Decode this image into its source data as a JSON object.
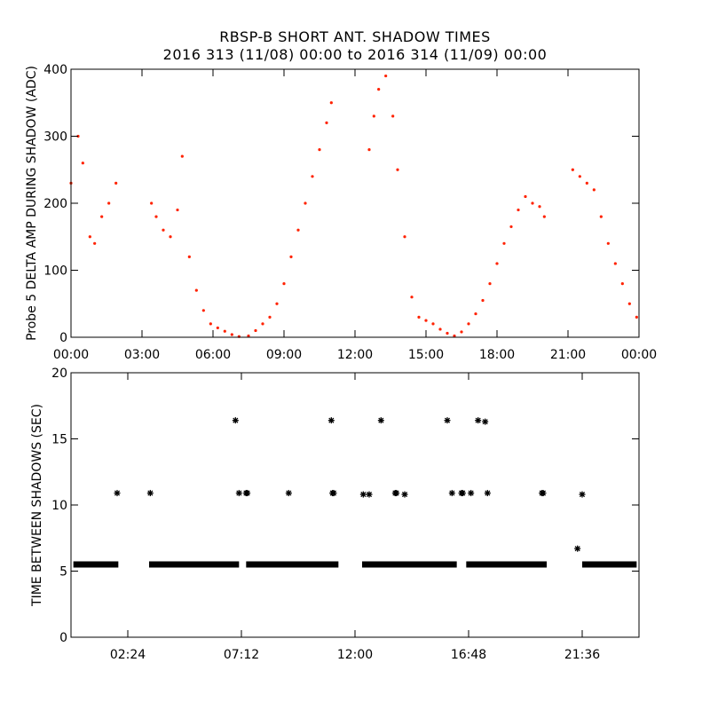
{
  "title": "RBSP-B SHORT ANT. SHADOW TIMES",
  "subtitle": "2016 313 (11/08) 00:00 to 2016 314 (11/09) 00:00",
  "colors": {
    "points": "#ff2200",
    "stars": "#000000",
    "axes": "#000000"
  },
  "chart_data": [
    {
      "type": "scatter",
      "ylabel": "Probe 5 DELTA AMP DURING SHADOW (ADC)",
      "xlabel": "",
      "xlim": [
        0,
        24
      ],
      "ylim": [
        0,
        400
      ],
      "xticks": [
        0,
        3,
        6,
        9,
        12,
        15,
        18,
        21,
        24
      ],
      "xtick_labels": [
        "00:00",
        "03:00",
        "06:00",
        "09:00",
        "12:00",
        "15:00",
        "18:00",
        "21:00",
        "00:00"
      ],
      "yticks": [
        0,
        100,
        200,
        300,
        400
      ],
      "ytick_labels": [
        "0",
        "100",
        "200",
        "300",
        "400"
      ],
      "grid": false,
      "marker": "dot",
      "series": [
        {
          "x": [
            0.0,
            0.3,
            0.5,
            0.8,
            1.0,
            1.3,
            1.6,
            1.9,
            3.4,
            3.6,
            3.9,
            4.2,
            4.5,
            4.7,
            5.0,
            5.3,
            5.6,
            5.9,
            6.2,
            6.5,
            6.8,
            7.1,
            7.5,
            7.8,
            8.1,
            8.4,
            8.7,
            9.0,
            9.3,
            9.6,
            9.9,
            10.2,
            10.5,
            10.8,
            11.0,
            12.6,
            12.8,
            13.0,
            13.3,
            13.6,
            13.8,
            14.1,
            14.4,
            14.7,
            15.0,
            15.3,
            15.6,
            15.9,
            16.2,
            16.5,
            16.8,
            17.1,
            17.4,
            17.7,
            18.0,
            18.3,
            18.6,
            18.9,
            19.2,
            19.5,
            19.8,
            20.0,
            21.2,
            21.5,
            21.8,
            22.1,
            22.4,
            22.7,
            23.0,
            23.3,
            23.6,
            23.9
          ],
          "y": [
            230,
            300,
            260,
            150,
            140,
            180,
            200,
            230,
            200,
            180,
            160,
            150,
            190,
            270,
            120,
            70,
            40,
            20,
            14,
            9,
            4,
            1,
            2,
            10,
            20,
            30,
            50,
            80,
            120,
            160,
            200,
            240,
            280,
            320,
            350,
            280,
            330,
            370,
            390,
            330,
            250,
            150,
            60,
            30,
            25,
            20,
            12,
            6,
            2,
            8,
            20,
            35,
            55,
            80,
            110,
            140,
            165,
            190,
            210,
            200,
            195,
            180,
            250,
            240,
            230,
            220,
            180,
            140,
            110,
            80,
            50,
            30
          ]
        }
      ]
    },
    {
      "type": "scatter",
      "ylabel": "TIME BETWEEN SHADOWS (SEC)",
      "xlabel": "",
      "xlim": [
        0,
        24
      ],
      "ylim": [
        0,
        20
      ],
      "xticks": [
        2.4,
        7.2,
        12.0,
        16.8,
        21.6
      ],
      "xtick_labels": [
        "02:24",
        "07:12",
        "12:00",
        "16:48",
        "21:36"
      ],
      "yticks": [
        0,
        5,
        10,
        15,
        20
      ],
      "ytick_labels": [
        "0",
        "5",
        "10",
        "15",
        "20"
      ],
      "grid": false,
      "marker": "asterisk",
      "baseline_value": 5.5,
      "baseline_segments": [
        [
          0.1,
          2.0
        ],
        [
          3.3,
          7.1
        ],
        [
          7.4,
          11.3
        ],
        [
          12.3,
          16.3
        ],
        [
          16.7,
          20.1
        ],
        [
          21.6,
          23.9
        ]
      ],
      "series": [
        {
          "x": [
            1.95,
            3.35,
            6.95,
            7.1,
            7.4,
            7.45,
            9.2,
            11.0,
            11.05,
            11.1,
            12.35,
            12.6,
            13.1,
            13.7,
            13.75,
            14.1,
            15.9,
            16.1,
            16.5,
            16.55,
            16.9,
            17.2,
            17.5,
            17.6,
            19.9,
            19.95,
            21.4,
            21.6
          ],
          "y": [
            10.9,
            10.9,
            16.4,
            10.9,
            10.9,
            10.9,
            10.9,
            16.4,
            10.9,
            10.9,
            10.8,
            10.8,
            16.4,
            10.9,
            10.9,
            10.8,
            16.4,
            10.9,
            10.9,
            10.9,
            10.9,
            16.4,
            16.3,
            10.9,
            10.9,
            10.9,
            6.7,
            10.8
          ]
        }
      ]
    }
  ]
}
